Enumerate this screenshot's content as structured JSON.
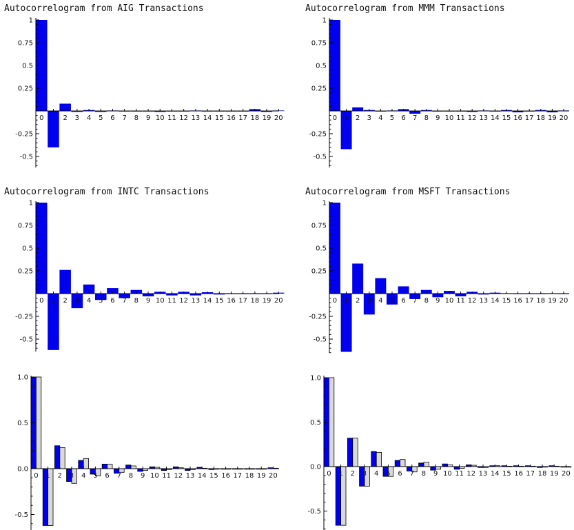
{
  "colors": {
    "primary": "#0000ee",
    "secondary": "#d9d9d9",
    "outline": "#000000"
  },
  "chart_data": [
    {
      "type": "bar",
      "title": "Autocorrelogram from AIG Transactions",
      "categories": [
        "0",
        "1",
        "2",
        "3",
        "4",
        "5",
        "6",
        "7",
        "8",
        "9",
        "10",
        "11",
        "12",
        "13",
        "14",
        "15",
        "16",
        "17",
        "18",
        "19",
        "20"
      ],
      "series": [
        {
          "values": [
            1.0,
            -0.4,
            0.08,
            -0.01,
            0.01,
            -0.01,
            0.005,
            -0.005,
            -0.005,
            -0.005,
            -0.01,
            -0.005,
            -0.005,
            0.005,
            -0.005,
            -0.005,
            -0.005,
            -0.005,
            0.02,
            -0.01,
            0.005
          ]
        }
      ],
      "yticks": [
        1,
        0.75,
        0.5,
        0.25,
        -0.25,
        -0.5
      ],
      "ytick_labels": [
        "1",
        "0.75",
        "0.5",
        "0.25",
        "-0.25",
        "-0.5"
      ],
      "ylim": [
        -0.62,
        1.0
      ],
      "legend": "none"
    },
    {
      "type": "bar",
      "title": "Autocorrelogram from MMM Transactions",
      "categories": [
        "0",
        "1",
        "2",
        "3",
        "4",
        "5",
        "6",
        "7",
        "8",
        "9",
        "10",
        "11",
        "12",
        "13",
        "14",
        "15",
        "16",
        "17",
        "18",
        "19",
        "20"
      ],
      "series": [
        {
          "values": [
            1.0,
            -0.42,
            0.04,
            0.01,
            -0.005,
            0.005,
            0.02,
            -0.03,
            0.01,
            -0.005,
            -0.005,
            -0.005,
            -0.01,
            0.005,
            -0.005,
            0.01,
            -0.015,
            -0.005,
            0.01,
            -0.015,
            0.005
          ]
        }
      ],
      "yticks": [
        1,
        0.75,
        0.5,
        0.25,
        -0.25,
        -0.5
      ],
      "ytick_labels": [
        "1",
        "0.75",
        "0.5",
        "0.25",
        "-0.25",
        "-0.5"
      ],
      "ylim": [
        -0.62,
        1.0
      ],
      "legend": "none"
    },
    {
      "type": "bar",
      "title": "Autocorrelogram from INTC Transactions",
      "categories": [
        "0",
        "1",
        "2",
        "3",
        "4",
        "5",
        "6",
        "7",
        "8",
        "9",
        "10",
        "11",
        "12",
        "13",
        "14",
        "15",
        "16",
        "17",
        "18",
        "19",
        "20"
      ],
      "series": [
        {
          "values": [
            1.0,
            -0.62,
            0.26,
            -0.16,
            0.1,
            -0.07,
            0.06,
            -0.05,
            0.04,
            -0.03,
            0.02,
            -0.02,
            0.02,
            -0.02,
            0.015,
            -0.01,
            -0.005,
            -0.005,
            -0.005,
            -0.005,
            0.01
          ]
        }
      ],
      "yticks": [
        1,
        0.75,
        0.5,
        0.25,
        -0.25,
        -0.5
      ],
      "ytick_labels": [
        "1",
        "0.75",
        "0.5",
        "0.25",
        "-0.25",
        "-0.5"
      ],
      "ylim": [
        -0.62,
        1.0
      ],
      "legend": "none"
    },
    {
      "type": "bar",
      "title": "Autocorrelogram from MSFT Transactions",
      "categories": [
        "0",
        "1",
        "2",
        "3",
        "4",
        "5",
        "6",
        "7",
        "8",
        "9",
        "10",
        "11",
        "12",
        "13",
        "14",
        "15",
        "16",
        "17",
        "18",
        "19",
        "20"
      ],
      "series": [
        {
          "values": [
            1.0,
            -0.64,
            0.33,
            -0.23,
            0.17,
            -0.12,
            0.08,
            -0.06,
            0.04,
            -0.04,
            0.03,
            -0.03,
            0.02,
            -0.01,
            0.01,
            0.005,
            -0.005,
            -0.005,
            -0.005,
            0.005,
            -0.005
          ]
        }
      ],
      "yticks": [
        1,
        0.75,
        0.5,
        0.25,
        -0.25,
        -0.5
      ],
      "ytick_labels": [
        "1",
        "0.75",
        "0.5",
        "0.25",
        "-0.25",
        "-0.5"
      ],
      "ylim": [
        -0.64,
        1.0
      ],
      "legend": "none"
    },
    {
      "type": "bar",
      "title": "",
      "categories": [
        "0",
        "1",
        "2",
        "3",
        "4",
        "5",
        "6",
        "7",
        "8",
        "9",
        "10",
        "11",
        "12",
        "13",
        "14",
        "15",
        "16",
        "17",
        "18",
        "19",
        "20"
      ],
      "series": [
        {
          "values": [
            1.0,
            -0.62,
            0.25,
            -0.14,
            0.09,
            -0.06,
            0.05,
            -0.05,
            0.04,
            -0.03,
            0.02,
            -0.02,
            0.02,
            -0.02,
            0.015,
            -0.01,
            -0.005,
            -0.005,
            -0.005,
            -0.005,
            0.01
          ]
        },
        {
          "values": [
            1.0,
            -0.62,
            0.23,
            -0.16,
            0.11,
            -0.08,
            0.05,
            -0.04,
            0.03,
            -0.02,
            0.015,
            -0.01,
            0.01,
            -0.01,
            0.005,
            -0.005,
            -0.005,
            -0.005,
            -0.005,
            -0.005,
            0.005
          ]
        }
      ],
      "yticks": [
        1.0,
        0.5,
        0.0,
        -0.5
      ],
      "ytick_labels": [
        "1.0",
        "0.5",
        "0.0",
        "-0.5"
      ],
      "ylim": [
        -0.72,
        1.0
      ],
      "legend": "none"
    },
    {
      "type": "bar",
      "title": "",
      "categories": [
        "0",
        "1",
        "2",
        "3",
        "4",
        "5",
        "6",
        "7",
        "8",
        "9",
        "10",
        "11",
        "12",
        "13",
        "14",
        "15",
        "16",
        "17",
        "18",
        "19",
        "20"
      ],
      "series": [
        {
          "values": [
            1.0,
            -0.66,
            0.32,
            -0.22,
            0.17,
            -0.11,
            0.07,
            -0.05,
            0.04,
            -0.04,
            0.03,
            -0.03,
            0.02,
            -0.01,
            0.01,
            0.01,
            0.01,
            0.01,
            -0.01,
            0.01,
            -0.005
          ]
        },
        {
          "values": [
            1.0,
            -0.66,
            0.32,
            -0.22,
            0.16,
            -0.11,
            0.08,
            -0.06,
            0.05,
            -0.03,
            0.02,
            -0.02,
            0.015,
            -0.01,
            0.01,
            0.005,
            0.005,
            0.005,
            -0.005,
            0.005,
            -0.005
          ]
        }
      ],
      "yticks": [
        1.0,
        0.5,
        0.0,
        -0.5
      ],
      "ytick_labels": [
        "1.0",
        "0.5",
        "0.0",
        "-0.5"
      ],
      "ylim": [
        -0.72,
        1.0
      ],
      "legend": "none"
    }
  ]
}
